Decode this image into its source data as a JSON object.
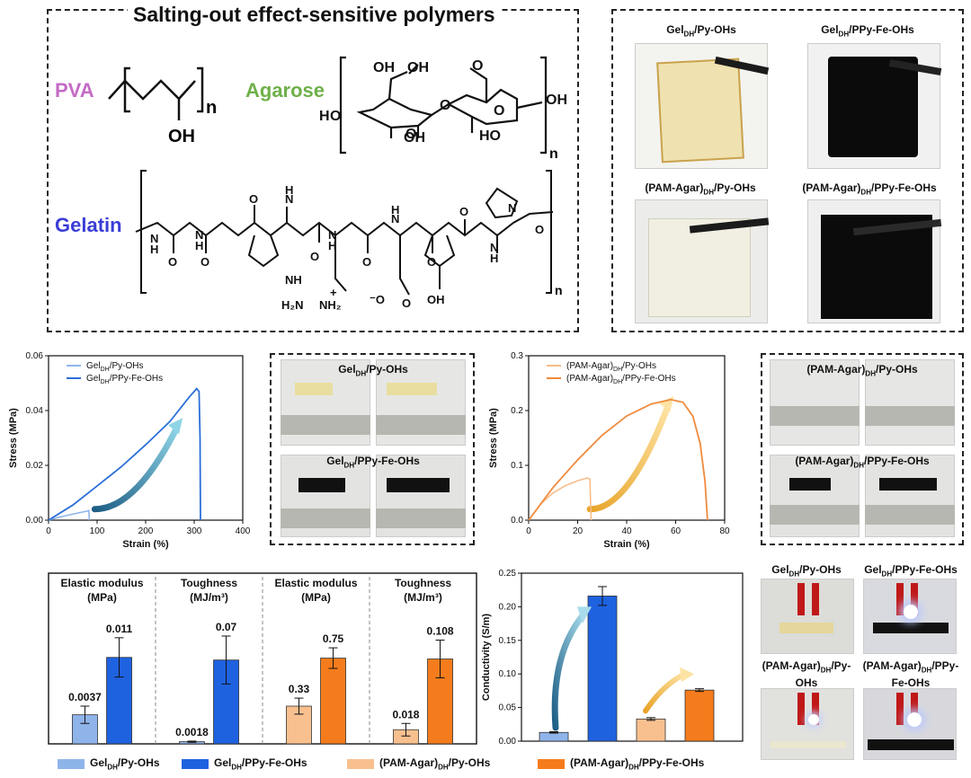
{
  "polymers_panel": {
    "title": "Salting-out effect-sensitive polymers",
    "pva_label": "PVA",
    "agarose_label": "Agarose",
    "gelatin_label": "Gelatin",
    "pva_oh": "OH",
    "pva_n": "n",
    "agarose_n": "n",
    "gelatin_n": "n",
    "colors": {
      "pva": "#c46bc6",
      "agarose": "#6fb04a",
      "gelatin": "#3a3ed6"
    }
  },
  "photos_top": {
    "labels": [
      {
        "base": "Gel",
        "sub": "DH",
        "rest": "/Py-OHs"
      },
      {
        "base": "Gel",
        "sub": "DH",
        "rest": "/PPy-Fe-OHs"
      },
      {
        "base": "(PAM-Agar)",
        "sub": "DH",
        "rest": "/Py-OHs"
      },
      {
        "base": "(PAM-Agar)",
        "sub": "DH",
        "rest": "/PPy-Fe-OHs"
      }
    ]
  },
  "stretch_photos_gel": {
    "label1": {
      "base": "Gel",
      "sub": "DH",
      "rest": "/Py-OHs"
    },
    "label2": {
      "base": "Gel",
      "sub": "DH",
      "rest": "/PPy-Fe-OHs"
    }
  },
  "stretch_photos_agar": {
    "label1": {
      "base": "(PAM-Agar)",
      "sub": "DH",
      "rest": "/Py-OHs"
    },
    "label2": {
      "base": "(PAM-Agar)",
      "sub": "DH",
      "rest": "/PPy-Fe-OHs"
    }
  },
  "led_photos": {
    "labels": [
      {
        "base": "Gel",
        "sub": "DH",
        "rest": "/Py-OHs"
      },
      {
        "base": "Gel",
        "sub": "DH",
        "rest": "/PPy-Fe-OHs"
      },
      {
        "base": "(PAM-Agar)",
        "sub": "DH",
        "rest": "/Py-OHs"
      },
      {
        "base": "(PAM-Agar)",
        "sub": "DH",
        "rest": "/PPy-Fe-OHs"
      }
    ]
  },
  "chart_data": [
    {
      "type": "line",
      "xlabel": "Strain (%)",
      "ylabel": "Stress (MPa)",
      "xlim": [
        0,
        400
      ],
      "ylim": [
        0,
        0.06
      ],
      "xticks": [
        "0",
        "100",
        "200",
        "300",
        "400"
      ],
      "yticks": [
        "0.00",
        "0.02",
        "0.04",
        "0.06"
      ],
      "legend_position": "top-left",
      "series": [
        {
          "name": "Gel_DH/Py-OHs",
          "color": "#8fb4ea",
          "x": [
            0,
            20,
            40,
            60,
            80,
            83,
            84
          ],
          "y": [
            0,
            0.001,
            0.0018,
            0.0026,
            0.0033,
            0.0035,
            0.0
          ]
        },
        {
          "name": "Gel_DH/PPy-Fe-OHs",
          "color": "#2c6fd8",
          "x": [
            0,
            50,
            100,
            150,
            200,
            250,
            290,
            305,
            310,
            312,
            313
          ],
          "y": [
            0,
            0.0055,
            0.0125,
            0.0195,
            0.0275,
            0.036,
            0.045,
            0.048,
            0.047,
            0.03,
            0.0
          ]
        }
      ]
    },
    {
      "type": "line",
      "xlabel": "Strain (%)",
      "ylabel": "Stress (MPa)",
      "xlim": [
        0,
        80
      ],
      "ylim": [
        0,
        0.3
      ],
      "xticks": [
        "0",
        "20",
        "40",
        "60",
        "80"
      ],
      "yticks": [
        "0.0",
        "0.1",
        "0.2",
        "0.3"
      ],
      "legend_position": "top-left",
      "series": [
        {
          "name": "(PAM-Agar)_DH/Py-OHs",
          "color": "#f7bd8a",
          "x": [
            0,
            5,
            10,
            15,
            20,
            24,
            25,
            25.5
          ],
          "y": [
            0,
            0.03,
            0.05,
            0.063,
            0.072,
            0.077,
            0.075,
            0.0
          ]
        },
        {
          "name": "(PAM-Agar)_DH/PPy-Fe-OHs",
          "color": "#f08a3c",
          "x": [
            0,
            10,
            20,
            30,
            40,
            50,
            58,
            63,
            67,
            70,
            72,
            73
          ],
          "y": [
            0,
            0.06,
            0.11,
            0.155,
            0.19,
            0.212,
            0.22,
            0.215,
            0.19,
            0.14,
            0.07,
            0.0
          ]
        }
      ]
    },
    {
      "type": "bar",
      "groups": [
        {
          "title": "Elastic modulus (MPa)",
          "values": [
            0.0037,
            0.011
          ],
          "labels": [
            "0.0037",
            "0.011"
          ],
          "errors": [
            0.0011,
            0.0025
          ],
          "ymax": 0.016
        },
        {
          "title": "Toughness (MJ/m³)",
          "values": [
            0.0018,
            0.07
          ],
          "labels": [
            "0.0018",
            "0.07"
          ],
          "errors": [
            0.0005,
            0.02
          ],
          "ymax": 0.105
        },
        {
          "title": "Elastic modulus (MPa)",
          "values": [
            0.33,
            0.75
          ],
          "labels": [
            "0.33",
            "0.75"
          ],
          "errors": [
            0.07,
            0.09
          ],
          "ymax": 1.1
        },
        {
          "title": "Toughness (MJ/m³)",
          "values": [
            0.018,
            0.108
          ],
          "labels": [
            "0.018",
            "0.108"
          ],
          "errors": [
            0.008,
            0.024
          ],
          "ymax": 0.16
        }
      ],
      "series_colors": [
        "#8fb4ea",
        "#1f62e0",
        "#f9c08f",
        "#f57c1c"
      ]
    },
    {
      "type": "bar",
      "ylabel": "Conductivity (S/m)",
      "ylim": [
        0,
        0.25
      ],
      "yticks": [
        "0.00",
        "0.05",
        "0.10",
        "0.15",
        "0.20",
        "0.25"
      ],
      "values": [
        0.013,
        0.216,
        0.033,
        0.076
      ],
      "errors": [
        0.001,
        0.014,
        0.002,
        0.002
      ],
      "colors": [
        "#8fb4ea",
        "#1f62e0",
        "#f9c08f",
        "#f57c1c"
      ]
    }
  ],
  "bottom_legend": [
    {
      "base": "Gel",
      "sub": "DH",
      "rest": "/Py-OHs",
      "color": "#8fb4ea"
    },
    {
      "base": "Gel",
      "sub": "DH",
      "rest": "/PPy-Fe-OHs",
      "color": "#1f62e0"
    },
    {
      "base": "(PAM-Agar)",
      "sub": "DH",
      "rest": "/Py-OHs",
      "color": "#f9c08f"
    },
    {
      "base": "(PAM-Agar)",
      "sub": "DH",
      "rest": "/PPy-Fe-OHs",
      "color": "#f57c1c"
    }
  ]
}
